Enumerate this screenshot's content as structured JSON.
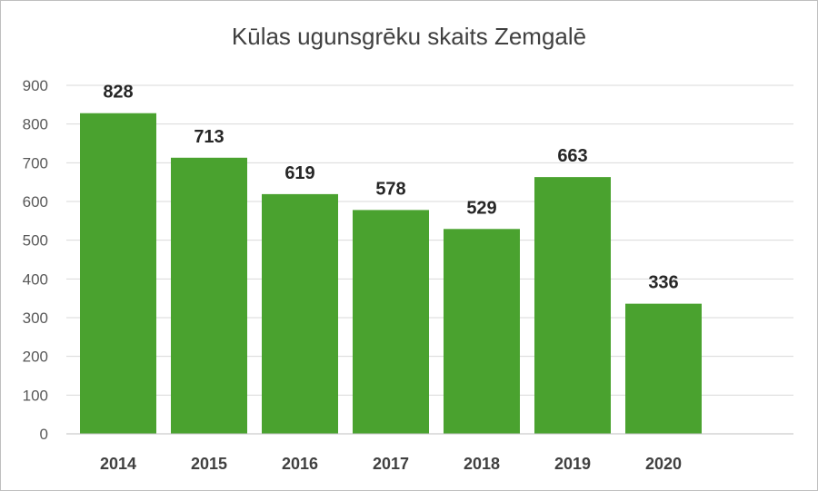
{
  "chart_data": {
    "type": "bar",
    "title": "Kūlas ugunsgrēku skaits Zemgalē",
    "categories": [
      "2014",
      "2015",
      "2016",
      "2017",
      "2018",
      "2019",
      "2020"
    ],
    "values": [
      828,
      713,
      619,
      578,
      529,
      663,
      336
    ],
    "ylim": [
      0,
      900
    ],
    "yticks": [
      0,
      100,
      200,
      300,
      400,
      500,
      600,
      700,
      800,
      900
    ],
    "xlabel": "",
    "ylabel": "",
    "grid": true,
    "legend": "none",
    "bar_color": "#4aa22f",
    "gridline_color": "#d9d9d9",
    "axis_color": "#bfbfbf"
  }
}
